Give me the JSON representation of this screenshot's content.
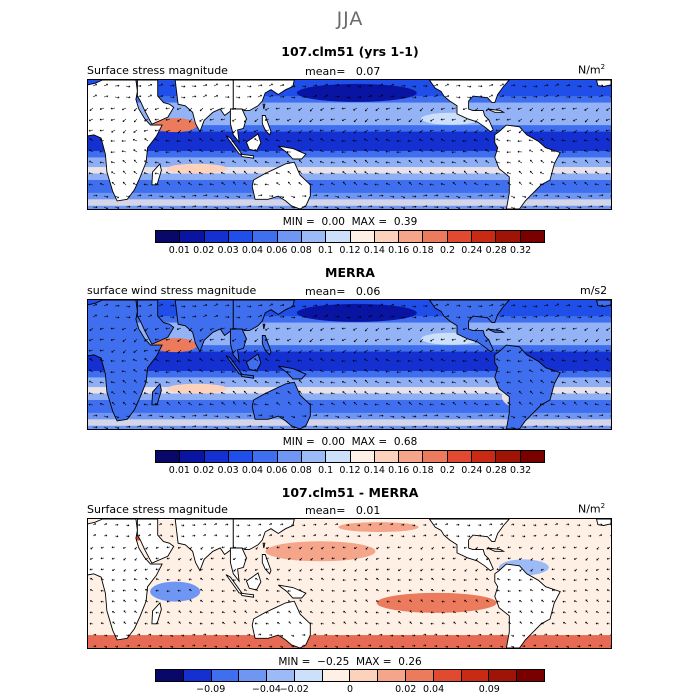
{
  "season": "JJA",
  "colors": {
    "abs_levels": [
      "#08086b",
      "#0a14a3",
      "#1530d0",
      "#1f4ee8",
      "#3f6fee",
      "#6e96f2",
      "#9cbaf6",
      "#cde0fb",
      "#fff0e6",
      "#fcd2bd",
      "#f4a58a",
      "#ec7a5c",
      "#e14a30",
      "#c82a14",
      "#a01408",
      "#7a0000"
    ],
    "diff_levels": [
      "#08086b",
      "#1530d0",
      "#3f6fee",
      "#6e96f2",
      "#9cbaf6",
      "#cde0fb",
      "#fff0e6",
      "#fcd2bd",
      "#f4a58a",
      "#ec7a5c",
      "#e14a30",
      "#c82a14",
      "#a01408",
      "#7a0000"
    ],
    "land": "#ffffff",
    "coast": "#000000"
  },
  "chart_data": [
    {
      "type": "heatmap",
      "title": "107.clm51 (yrs 1-1)",
      "label": "Surface stress magnitude",
      "mean_label": "mean=",
      "mean_value": "0.07",
      "units": "N/m",
      "units_sup": "2",
      "min_label": "MIN =",
      "min_value": "0.00",
      "max_label": "MAX =",
      "max_value": "0.39",
      "colorbar_ticks": [
        "0.01",
        "0.02",
        "0.03",
        "0.04",
        "0.06",
        "0.08",
        "0.1",
        "0.12",
        "0.14",
        "0.16",
        "0.18",
        "0.2",
        "0.24",
        "0.28",
        "0.32"
      ]
    },
    {
      "type": "heatmap",
      "title": "MERRA",
      "label": "surface wind stress magnitude",
      "mean_label": "mean=",
      "mean_value": "0.06",
      "units": "m/s2",
      "units_sup": "",
      "min_label": "MIN =",
      "min_value": "0.00",
      "max_label": "MAX =",
      "max_value": "0.68",
      "colorbar_ticks": [
        "0.01",
        "0.02",
        "0.03",
        "0.04",
        "0.06",
        "0.08",
        "0.1",
        "0.12",
        "0.14",
        "0.16",
        "0.18",
        "0.2",
        "0.24",
        "0.28",
        "0.32"
      ]
    },
    {
      "type": "heatmap",
      "title": "107.clm51 - MERRA",
      "label": "Surface stress magnitude",
      "mean_label": "mean=",
      "mean_value": "0.01",
      "units": "N/m",
      "units_sup": "2",
      "min_label": "MIN =",
      "min_value": "−0.25",
      "max_label": "MAX =",
      "max_value": "0.26",
      "colorbar_ticks": [
        "−0.09",
        "−0.04",
        "−0.02",
        "0",
        "0.02",
        "0.04",
        "0.09"
      ]
    }
  ]
}
